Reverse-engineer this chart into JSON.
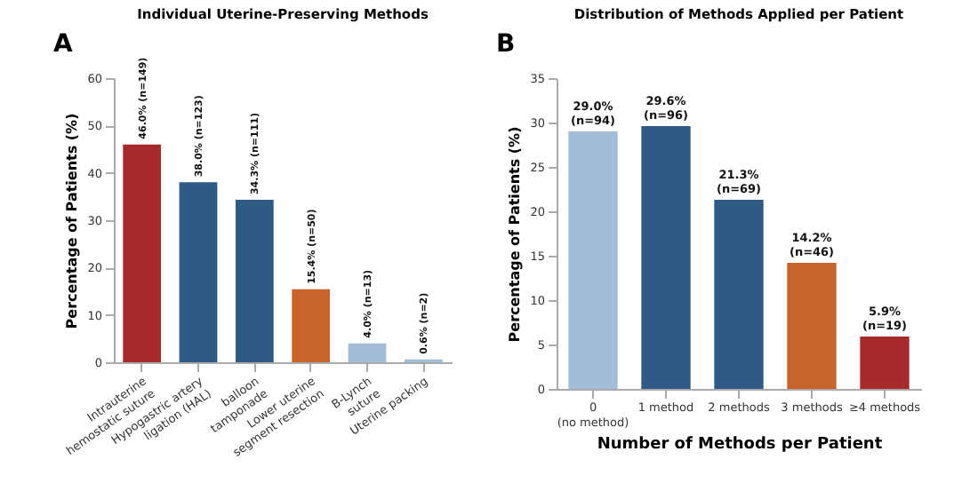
{
  "chart_data": [
    {
      "type": "bar",
      "title": "Individual Uterine-Preserving Methods",
      "ylabel": "Percentage of Patients (%)",
      "annotations": [
        "A"
      ],
      "categories": [
        "Intrauterine\nhemostatic suture",
        "Hypogastric artery\nligation (HAL)",
        "balloon\ntamponade",
        "Lower uterine\nsegment resection",
        "B-Lynch\nsuture",
        "Uterine packing"
      ],
      "values": [
        46.0,
        38.0,
        34.3,
        15.4,
        4.0,
        0.6
      ],
      "colors": [
        "#a6292c",
        "#2e5a85",
        "#2e5a85",
        "#c8642a",
        "#a3bcd8",
        "#a3bcd8"
      ],
      "value_labels": [
        "46.0% (n=149)",
        "38.0% (n=123)",
        "34.3% (n=111)",
        "15.4% (n=50)",
        "4.0% (n=13)",
        "0.6% (n=2)"
      ],
      "ylim": [
        0,
        60
      ],
      "yticks": [
        0,
        10,
        20,
        30,
        40,
        50,
        60
      ],
      "grid": false,
      "legend": false
    },
    {
      "type": "bar",
      "title": "Distribution of Methods Applied per Patient",
      "xlabel": "Number of Methods per Patient",
      "ylabel": "Percentage of Patients (%)",
      "annotations": [
        "B"
      ],
      "categories": [
        "0\n(no method)",
        "1 method",
        "2 methods",
        "3 methods",
        "≥4 methods"
      ],
      "values": [
        29.0,
        29.6,
        21.3,
        14.2,
        5.9
      ],
      "colors": [
        "#a3bcd8",
        "#2e5a85",
        "#2e5a85",
        "#c8642a",
        "#a6292c"
      ],
      "value_labels": [
        "29.0%\n(n=94)",
        "29.6%\n(n=96)",
        "21.3%\n(n=69)",
        "14.2%\n(n=46)",
        "5.9%\n(n=19)"
      ],
      "ylim": [
        0,
        35
      ],
      "yticks": [
        0,
        5,
        10,
        15,
        20,
        25,
        30,
        35
      ],
      "grid": false,
      "legend": false
    }
  ]
}
